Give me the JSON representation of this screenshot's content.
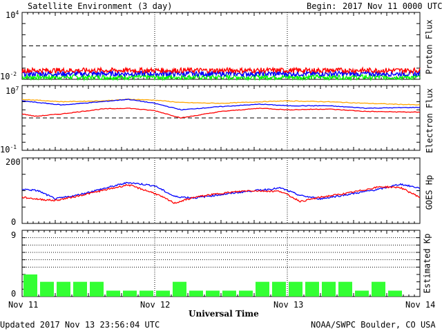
{
  "header": {
    "title": "Satellite Environment (3 day)",
    "begin_label": "Begin:",
    "begin_value": "2017 Nov 11 0000 UTC"
  },
  "footer": {
    "updated": "Updated 2017 Nov 13 23:56:04 UTC",
    "credit": "NOAA/SWPC Boulder, CO USA"
  },
  "colors": {
    "red": "#ff0000",
    "blue": "#0000ff",
    "green": "#00ff00",
    "orange": "#ffa500",
    "kp_bar": "#33ff33"
  },
  "chart_data": [
    {
      "type": "line",
      "ylabel": "Proton Flux",
      "scale": "log",
      "ylim_log10": [
        -2,
        4
      ],
      "ytick_labels": [
        {
          "base": "10",
          "exp": "4"
        },
        {
          "base": "10",
          "exp": "-2"
        }
      ],
      "threshold_log10": 1,
      "series": [
        {
          "color": "red",
          "level_log10": -1.2
        },
        {
          "color": "blue",
          "level_log10": -1.5
        },
        {
          "color": "green",
          "level_log10": -1.8
        }
      ]
    },
    {
      "type": "line",
      "ylabel": "Electron Flux",
      "scale": "log",
      "ylim_log10": [
        -1,
        7
      ],
      "ytick_labels": [
        {
          "base": "10",
          "exp": "7"
        },
        {
          "base": "10",
          "exp": "-1"
        }
      ],
      "threshold_log10": 3,
      "series": [
        {
          "color": "orange",
          "x": [
            0,
            0.3,
            0.6,
            0.8,
            1.0,
            1.2,
            1.5,
            1.8,
            2.0,
            2.3,
            2.6,
            3.0
          ],
          "y": [
            5.3,
            5.0,
            5.1,
            5.3,
            5.2,
            4.9,
            4.8,
            5.0,
            5.1,
            5.0,
            4.8,
            4.6
          ]
        },
        {
          "color": "blue",
          "x": [
            0,
            0.3,
            0.6,
            0.8,
            1.0,
            1.2,
            1.5,
            1.8,
            2.0,
            2.3,
            2.6,
            3.0
          ],
          "y": [
            5.1,
            4.6,
            5.0,
            5.3,
            4.8,
            4.0,
            4.4,
            4.7,
            4.5,
            4.5,
            4.2,
            4.3
          ]
        },
        {
          "color": "red",
          "x": [
            0,
            0.1,
            0.3,
            0.6,
            0.8,
            1.0,
            1.2,
            1.5,
            1.8,
            2.0,
            2.3,
            2.6,
            3.0
          ],
          "y": [
            3.5,
            3.2,
            3.5,
            4.1,
            4.2,
            3.9,
            3.0,
            3.8,
            4.2,
            4.0,
            4.1,
            3.8,
            3.7
          ]
        }
      ]
    },
    {
      "type": "line",
      "ylabel": "GOES Hp",
      "ylim": [
        0,
        200
      ],
      "ytick_labels": [
        "200",
        "0"
      ],
      "series": [
        {
          "color": "blue",
          "x": [
            0,
            0.12,
            0.25,
            0.4,
            0.6,
            0.8,
            1.0,
            1.15,
            1.3,
            1.5,
            1.7,
            1.95,
            2.1,
            2.25,
            2.45,
            2.7,
            2.85,
            3.0
          ],
          "y": [
            105,
            100,
            75,
            85,
            105,
            125,
            115,
            82,
            78,
            88,
            98,
            108,
            85,
            75,
            88,
            105,
            120,
            108
          ]
        },
        {
          "color": "red",
          "x": [
            0,
            0.12,
            0.25,
            0.4,
            0.6,
            0.8,
            1.0,
            1.15,
            1.3,
            1.5,
            1.7,
            1.95,
            2.1,
            2.25,
            2.45,
            2.7,
            2.85,
            3.0
          ],
          "y": [
            80,
            74,
            70,
            82,
            100,
            118,
            92,
            62,
            80,
            92,
            100,
            98,
            67,
            80,
            92,
            112,
            110,
            80
          ]
        }
      ]
    },
    {
      "type": "bar",
      "ylabel": "Estimated Kp",
      "ylim": [
        0,
        9
      ],
      "ytick_labels": [
        "9",
        "0"
      ],
      "dotted_levels": [
        4,
        5,
        6,
        7,
        8
      ],
      "values": [
        3.0,
        2.0,
        2.0,
        2.0,
        2.0,
        0.8,
        0.8,
        0.8,
        0.8,
        2.0,
        0.8,
        0.8,
        0.8,
        0.8,
        2.0,
        2.0,
        2.0,
        2.0,
        2.0,
        2.0,
        0.8,
        2.0,
        0.8
      ]
    }
  ],
  "x_axis": {
    "xlabel": "Universal Time",
    "tick_labels": [
      "Nov 11",
      "Nov 12",
      "Nov 13",
      "Nov 14"
    ],
    "range_days": [
      0,
      3
    ]
  }
}
